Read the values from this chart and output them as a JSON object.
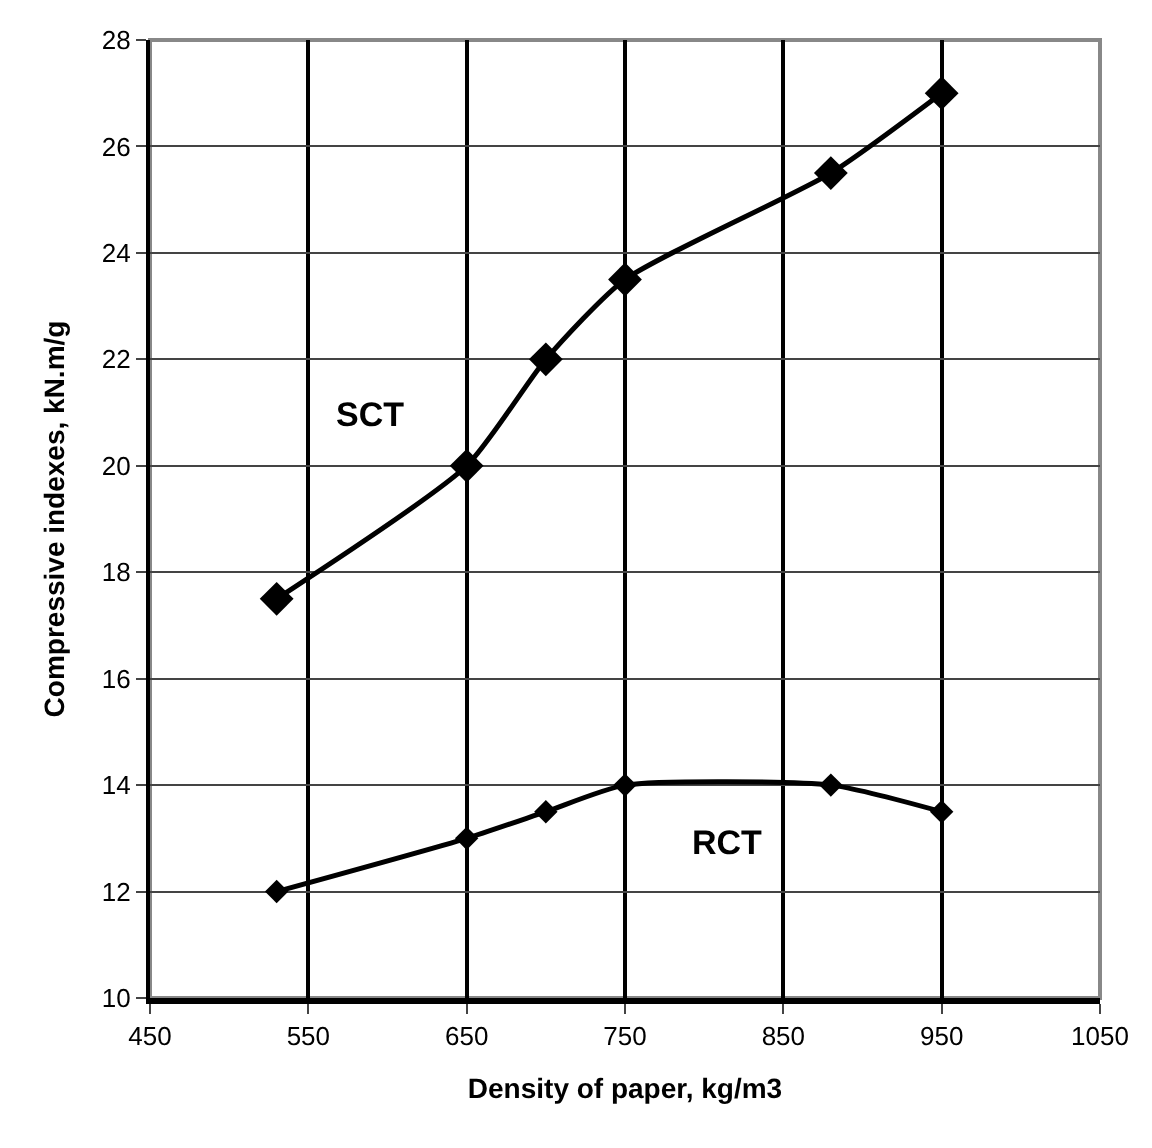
{
  "chart_data": {
    "type": "line",
    "xlabel": "Density of paper, kg/m3",
    "ylabel": "Compressive indexes, kN.m/g",
    "x": [
      530,
      650,
      700,
      750,
      880,
      950
    ],
    "series": [
      {
        "name": "SCT",
        "color": "#000000",
        "values": [
          17.5,
          20,
          22,
          23.5,
          25.5,
          27
        ]
      },
      {
        "name": "RCT",
        "color": "#000000",
        "values": [
          12,
          13,
          13.5,
          14,
          14,
          13.5
        ]
      }
    ],
    "xlim": [
      450,
      1050
    ],
    "xticks": [
      450,
      550,
      650,
      750,
      850,
      950,
      1050
    ],
    "ylim": [
      10,
      28
    ],
    "yticks": [
      10,
      12,
      14,
      16,
      18,
      20,
      22,
      24,
      26,
      28
    ],
    "grid": true,
    "legend": false,
    "marker": "diamond",
    "line_style": "solid"
  }
}
